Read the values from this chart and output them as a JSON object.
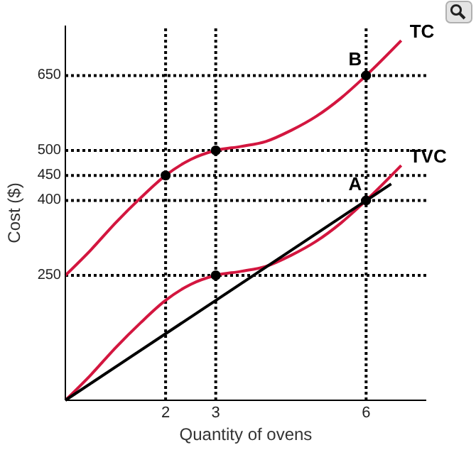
{
  "chart_data": {
    "type": "line",
    "xlabel": "Quantity of ovens",
    "ylabel": "Cost ($)",
    "xlim": [
      0,
      7.2
    ],
    "ylim": [
      0,
      750
    ],
    "xticks": [
      2,
      3,
      6
    ],
    "yticks": [
      250,
      400,
      450,
      500,
      650
    ],
    "grid": false,
    "legend": false,
    "marker": "none",
    "line_style": "solid",
    "series": [
      {
        "name": "TC",
        "color": "#d3163f",
        "x": [
          0,
          0.5,
          1,
          1.5,
          2,
          2.5,
          3,
          3.5,
          4,
          4.5,
          5,
          5.5,
          6,
          6.7
        ],
        "values": [
          250,
          300,
          355,
          405,
          450,
          482,
          500,
          508,
          518,
          540,
          568,
          605,
          650,
          720
        ]
      },
      {
        "name": "TVC",
        "color": "#d3163f",
        "x": [
          0,
          0.5,
          1,
          1.5,
          2,
          2.5,
          3,
          3.5,
          4,
          4.5,
          5,
          5.5,
          6,
          6.7
        ],
        "values": [
          0,
          50,
          105,
          155,
          200,
          232,
          250,
          258,
          268,
          290,
          318,
          355,
          400,
          470
        ]
      },
      {
        "type": "line",
        "color": "#000000",
        "x": [
          0,
          6.5
        ],
        "values": [
          0,
          433
        ]
      },
      {
        "type": "scatter",
        "color": "#000000",
        "marker": "circle",
        "x": [
          2,
          3,
          6,
          6,
          3
        ],
        "values": [
          450,
          500,
          650,
          400,
          250
        ]
      }
    ],
    "ref_lines": [
      {
        "axis": "y",
        "value": 650,
        "line_style": "dotted"
      },
      {
        "axis": "y",
        "value": 500,
        "line_style": "dotted"
      },
      {
        "axis": "y",
        "value": 450,
        "line_style": "dotted"
      },
      {
        "axis": "y",
        "value": 400,
        "line_style": "dotted"
      },
      {
        "axis": "y",
        "value": 250,
        "line_style": "dotted"
      },
      {
        "axis": "x",
        "value": 2,
        "line_style": "dotted"
      },
      {
        "axis": "x",
        "value": 3,
        "line_style": "dotted"
      },
      {
        "axis": "x",
        "value": 6,
        "line_style": "dotted"
      }
    ],
    "annotations": [
      {
        "text": "A",
        "x": 6,
        "y": 400
      },
      {
        "text": "B",
        "x": 6,
        "y": 650
      }
    ]
  }
}
